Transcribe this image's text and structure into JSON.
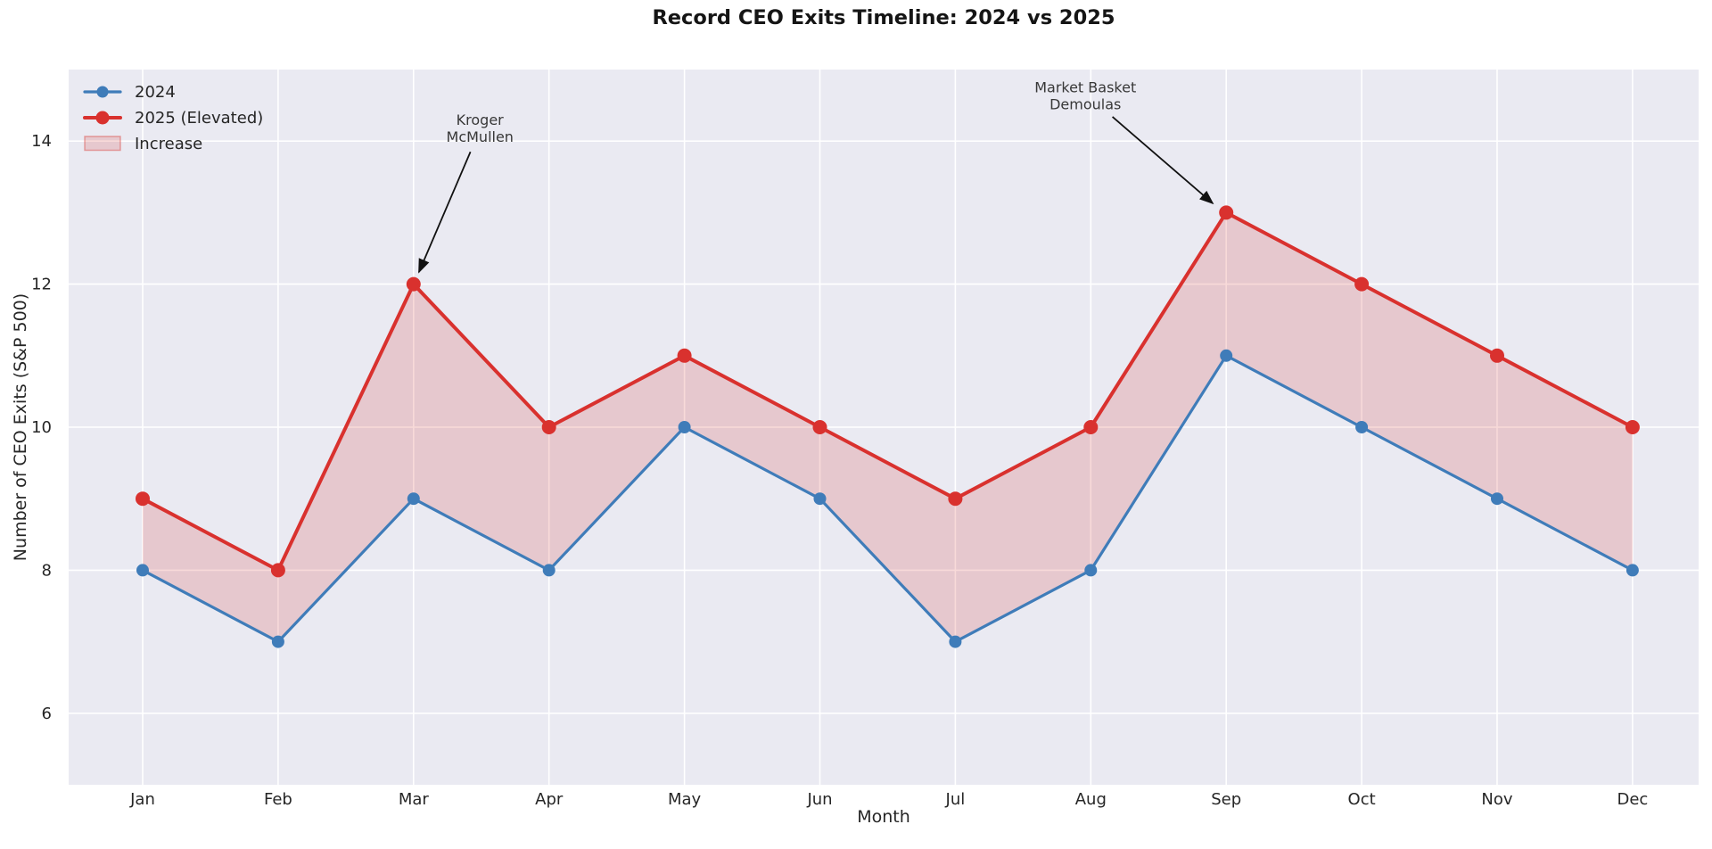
{
  "chart_data": {
    "type": "line",
    "title": "Record CEO Exits Timeline: 2024 vs 2025",
    "xlabel": "Month",
    "ylabel": "Number of CEO Exits (S&P 500)",
    "categories": [
      "Jan",
      "Feb",
      "Mar",
      "Apr",
      "May",
      "Jun",
      "Jul",
      "Aug",
      "Sep",
      "Oct",
      "Nov",
      "Dec"
    ],
    "series": [
      {
        "name": "2024",
        "color": "#3f7cb9",
        "values": [
          8,
          7,
          9,
          8,
          10,
          9,
          7,
          8,
          11,
          10,
          9,
          8
        ]
      },
      {
        "name": "2025 (Elevated)",
        "color": "#d9312e",
        "values": [
          9,
          8,
          12,
          10,
          11,
          10,
          9,
          10,
          13,
          12,
          11,
          10
        ]
      }
    ],
    "fill_between": {
      "label": "Increase",
      "fill_color": "rgba(217,49,46,0.18)",
      "border_color": "rgba(217,49,46,0.4)"
    },
    "ylim": [
      5,
      15
    ],
    "yticks": [
      6,
      8,
      10,
      12,
      14
    ],
    "grid": true,
    "plot_background": "#eaeaf2",
    "grid_color": "#ffffff",
    "annotation_color": "#111111",
    "legend_position": "upper-left",
    "annotations": [
      {
        "text_lines": [
          "Kroger",
          "McMullen"
        ],
        "target_month": "Mar",
        "target_value": 12,
        "text_xy": [
          2.49,
          14.18
        ],
        "arrow_from": [
          2.42,
          13.85
        ],
        "arrow_to": [
          2.04,
          12.17
        ]
      },
      {
        "text_lines": [
          "Market Basket",
          "Demoulas"
        ],
        "target_month": "Sep",
        "target_value": 13,
        "text_xy": [
          6.96,
          14.63
        ],
        "arrow_from": [
          7.16,
          14.34
        ],
        "arrow_to": [
          7.9,
          13.13
        ]
      }
    ]
  }
}
